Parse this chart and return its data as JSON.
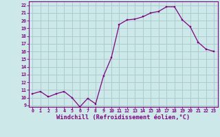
{
  "x": [
    0,
    1,
    2,
    3,
    4,
    5,
    6,
    7,
    8,
    9,
    10,
    11,
    12,
    13,
    14,
    15,
    16,
    17,
    18,
    19,
    20,
    21,
    22,
    23
  ],
  "y": [
    10.5,
    10.8,
    10.1,
    10.5,
    10.8,
    10.0,
    8.8,
    9.9,
    9.2,
    12.8,
    15.2,
    19.5,
    20.1,
    20.2,
    20.5,
    21.0,
    21.2,
    21.8,
    21.8,
    20.1,
    19.2,
    17.2,
    16.3,
    16.0
  ],
  "line_color": "#800080",
  "marker_color": "#800080",
  "bg_color": "#cce8e8",
  "grid_color": "#aacccc",
  "xlabel": "Windchill (Refroidissement éolien,°C)",
  "ylabel_ticks": [
    9,
    10,
    11,
    12,
    13,
    14,
    15,
    16,
    17,
    18,
    19,
    20,
    21,
    22
  ],
  "ylim": [
    8.8,
    22.5
  ],
  "xlim": [
    -0.5,
    23.5
  ],
  "xticks": [
    0,
    1,
    2,
    3,
    4,
    5,
    6,
    7,
    8,
    9,
    10,
    11,
    12,
    13,
    14,
    15,
    16,
    17,
    18,
    19,
    20,
    21,
    22,
    23
  ],
  "tick_fontsize": 4.8,
  "label_fontsize": 6.2
}
